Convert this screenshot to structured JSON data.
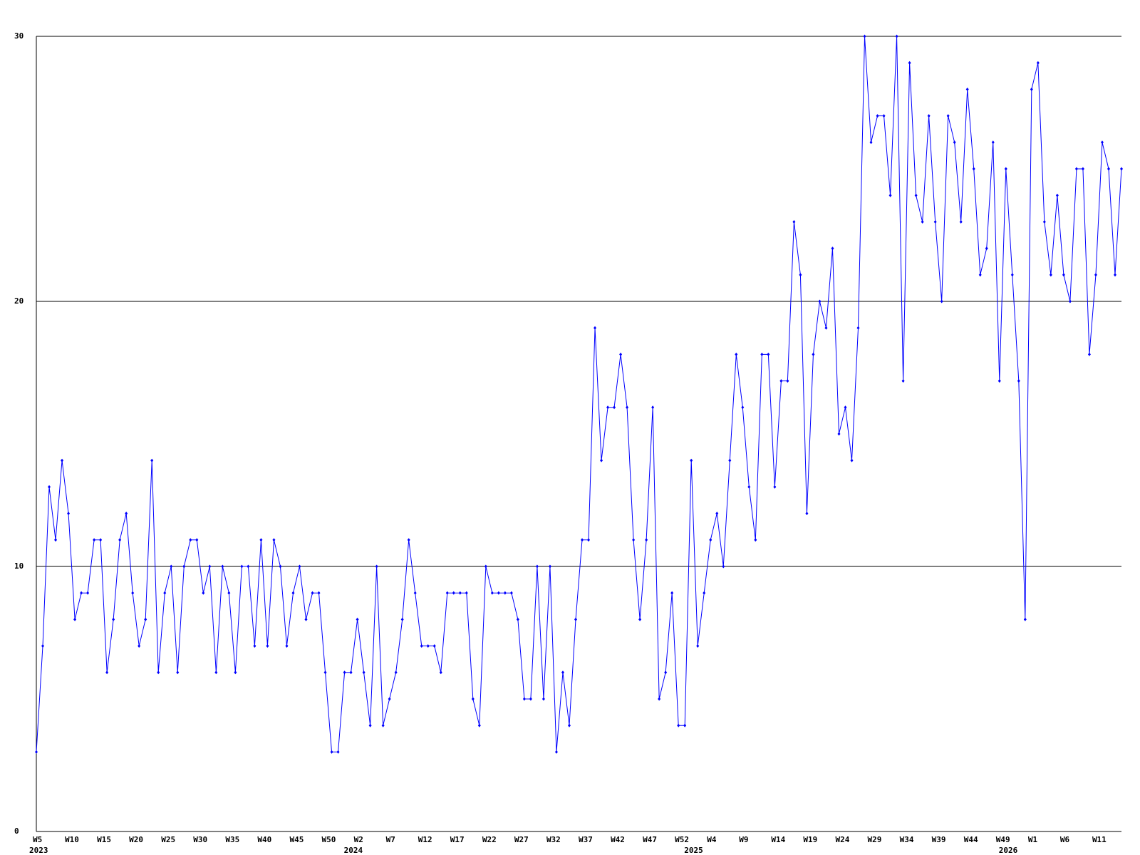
{
  "chart_data": {
    "type": "line",
    "categories": [
      "W5",
      null,
      null,
      null,
      null,
      "W10",
      null,
      null,
      null,
      null,
      "W15",
      null,
      null,
      null,
      null,
      "W20",
      null,
      null,
      null,
      null,
      "W25",
      null,
      null,
      null,
      null,
      "W30",
      null,
      null,
      null,
      null,
      "W35",
      null,
      null,
      null,
      null,
      "W40",
      null,
      null,
      null,
      null,
      "W45",
      null,
      null,
      null,
      null,
      "W50",
      null,
      null,
      null,
      null,
      "W2",
      null,
      null,
      null,
      null,
      "W7",
      null,
      null,
      null,
      null,
      "W12",
      null,
      null,
      null,
      null,
      "W17",
      null,
      null,
      null,
      null,
      "W22",
      null,
      null,
      null,
      null,
      "W27",
      null,
      null,
      null,
      null,
      "W32",
      null,
      null,
      null,
      null,
      "W37",
      null,
      null,
      null,
      null,
      "W42",
      null,
      null,
      null,
      null,
      "W47",
      null,
      null,
      null,
      null,
      "W52",
      null,
      null,
      null,
      null,
      "W4",
      null,
      null,
      null,
      null,
      "W9",
      null,
      null,
      null,
      null,
      "W14",
      null,
      null,
      null,
      null,
      "W19",
      null,
      null,
      null,
      null,
      "W24",
      null,
      null,
      null,
      null,
      "W29",
      null,
      null,
      null,
      null,
      "W34",
      null,
      null,
      null,
      null,
      "W39",
      null,
      null,
      null,
      null,
      "W44",
      null,
      null,
      null,
      null,
      "W49",
      null,
      null,
      null,
      null,
      "W1",
      null,
      null,
      null,
      null,
      "W6",
      null,
      null,
      null,
      null,
      "W11",
      null,
      null,
      null,
      null
    ],
    "years": [
      "2023",
      null,
      null,
      null,
      null,
      null,
      null,
      null,
      null,
      null,
      null,
      null,
      null,
      null,
      null,
      null,
      null,
      null,
      null,
      null,
      null,
      null,
      null,
      null,
      null,
      null,
      null,
      null,
      null,
      null,
      null,
      null,
      null,
      null,
      null,
      null,
      null,
      null,
      null,
      null,
      null,
      null,
      null,
      null,
      null,
      null,
      null,
      null,
      null,
      "2024",
      null,
      null,
      null,
      null,
      null,
      null,
      null,
      null,
      null,
      null,
      null,
      null,
      null,
      null,
      null,
      null,
      null,
      null,
      null,
      null,
      null,
      null,
      null,
      null,
      null,
      null,
      null,
      null,
      null,
      null,
      null,
      null,
      null,
      null,
      null,
      null,
      null,
      null,
      null,
      null,
      null,
      null,
      null,
      null,
      null,
      null,
      null,
      null,
      null,
      null,
      null,
      null,
      "2025",
      null,
      null,
      null,
      null,
      null,
      null,
      null,
      null,
      null,
      null,
      null,
      null,
      null,
      null,
      null,
      null,
      null,
      null,
      null,
      null,
      null,
      null,
      null,
      null,
      null,
      null,
      null,
      null,
      null,
      null,
      null,
      null,
      null,
      null,
      null,
      null,
      null,
      null,
      null,
      null,
      null,
      null,
      null,
      null,
      null,
      null,
      null,
      null,
      "2026",
      null,
      null,
      null,
      null,
      null,
      null,
      null,
      null,
      null,
      null,
      null,
      null,
      null,
      null
    ],
    "values": [
      3,
      7,
      13,
      11,
      14,
      12,
      8,
      9,
      9,
      11,
      11,
      6,
      8,
      11,
      12,
      9,
      7,
      8,
      14,
      6,
      9,
      10,
      6,
      10,
      11,
      11,
      9,
      10,
      6,
      10,
      9,
      6,
      10,
      10,
      7,
      11,
      7,
      11,
      10,
      7,
      9,
      10,
      8,
      9,
      9,
      6,
      3,
      3,
      6,
      6,
      8,
      6,
      4,
      10,
      4,
      5,
      6,
      8,
      11,
      9,
      7,
      7,
      7,
      6,
      9,
      9,
      9,
      9,
      5,
      4,
      10,
      9,
      9,
      9,
      9,
      8,
      5,
      5,
      10,
      5,
      10,
      3,
      6,
      4,
      8,
      11,
      11,
      19,
      14,
      16,
      16,
      18,
      16,
      11,
      8,
      11,
      16,
      5,
      6,
      9,
      4,
      4,
      14,
      7,
      9,
      11,
      12,
      10,
      14,
      18,
      16,
      13,
      11,
      18,
      18,
      13,
      17,
      17,
      23,
      21,
      12,
      18,
      20,
      19,
      22,
      15,
      16,
      14,
      19,
      30,
      26,
      27,
      27,
      24,
      30,
      17,
      29,
      24,
      23,
      27,
      23,
      20,
      27,
      26,
      23,
      28,
      25,
      21,
      22,
      26,
      17,
      25,
      21,
      17,
      8,
      28,
      29,
      23,
      21,
      24,
      21,
      20,
      25,
      25,
      18,
      21,
      26,
      25,
      21,
      25
    ],
    "color": "#0000ff",
    "ylim": [
      0,
      30
    ],
    "yticks": [
      0,
      10,
      20,
      30
    ],
    "grid": true
  }
}
